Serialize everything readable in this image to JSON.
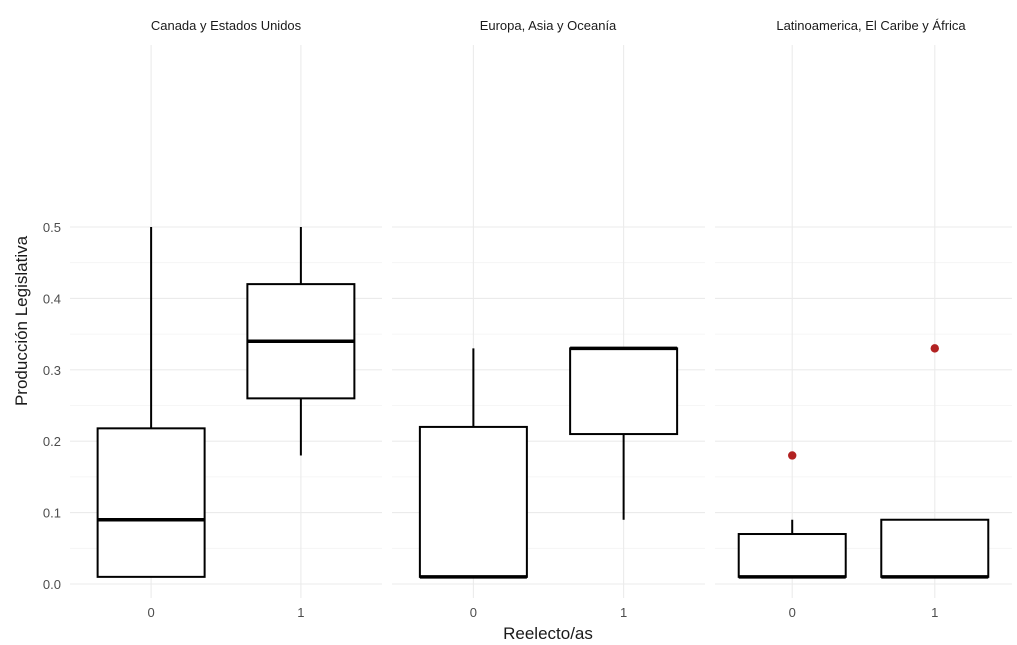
{
  "chart_data": {
    "type": "boxplot",
    "xlabel": "Reelecto/as",
    "ylabel": "Producción Legislativa",
    "ylim": [
      0,
      0.5
    ],
    "yticks": [
      "0.0",
      "0.1",
      "0.2",
      "0.3",
      "0.4",
      "0.5"
    ],
    "categories": [
      "0",
      "1"
    ],
    "grid": true,
    "outlier_color": "#b22222",
    "panels": [
      {
        "title": "Canada y Estados Unidos",
        "boxes": [
          {
            "x": "0",
            "lower": 0.01,
            "q1": 0.01,
            "median": 0.09,
            "q3": 0.218,
            "upper": 0.5,
            "outliers": []
          },
          {
            "x": "1",
            "lower": 0.18,
            "q1": 0.26,
            "median": 0.34,
            "q3": 0.42,
            "upper": 0.5,
            "outliers": []
          }
        ]
      },
      {
        "title": "Europa, Asia y Oceanía",
        "boxes": [
          {
            "x": "0",
            "lower": 0.01,
            "q1": 0.01,
            "median": 0.01,
            "q3": 0.22,
            "upper": 0.33,
            "outliers": []
          },
          {
            "x": "1",
            "lower": 0.09,
            "q1": 0.21,
            "median": 0.33,
            "q3": 0.33,
            "upper": 0.33,
            "outliers": []
          }
        ]
      },
      {
        "title": "Latinoamerica, El Caribe y África",
        "boxes": [
          {
            "x": "0",
            "lower": 0.01,
            "q1": 0.01,
            "median": 0.01,
            "q3": 0.07,
            "upper": 0.09,
            "outliers": [
              0.18
            ]
          },
          {
            "x": "1",
            "lower": 0.01,
            "q1": 0.01,
            "median": 0.01,
            "q3": 0.09,
            "upper": 0.09,
            "outliers": [
              0.33
            ]
          }
        ]
      }
    ]
  }
}
